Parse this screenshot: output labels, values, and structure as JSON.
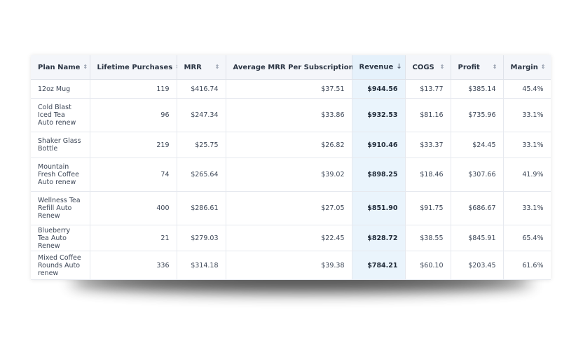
{
  "table": {
    "columns": [
      {
        "label": "Plan Name",
        "sort_icon": "sort-both-icon"
      },
      {
        "label": "Lifetime Purchases",
        "sort_icon": "sort-both-icon"
      },
      {
        "label": "MRR",
        "sort_icon": "sort-both-icon"
      },
      {
        "label": "Average MRR Per Subscription",
        "sort_icon": "sort-both-icon"
      },
      {
        "label": "Revenue",
        "sort_icon": "sort-desc-icon"
      },
      {
        "label": "COGS",
        "sort_icon": "sort-both-icon"
      },
      {
        "label": "Profit",
        "sort_icon": "sort-both-icon"
      },
      {
        "label": "Margin",
        "sort_icon": "sort-both-icon"
      }
    ],
    "sorted_column": "Revenue",
    "sort_direction": "descending",
    "rows": [
      {
        "plan": "12oz Mug",
        "purchases": "119",
        "mrr": "$416.74",
        "avg_mrr": "$37.51",
        "revenue": "$944.56",
        "cogs": "$13.77",
        "profit": "$385.14",
        "margin": "45.4%"
      },
      {
        "plan": "Cold Blast Iced Tea Auto renew",
        "purchases": "96",
        "mrr": "$247.34",
        "avg_mrr": "$33.86",
        "revenue": "$932.53",
        "cogs": "$81.16",
        "profit": "$735.96",
        "margin": "33.1%"
      },
      {
        "plan": "Shaker Glass Bottle",
        "purchases": "219",
        "mrr": "$25.75",
        "avg_mrr": "$26.82",
        "revenue": "$910.46",
        "cogs": "$33.37",
        "profit": "$24.45",
        "margin": "33.1%"
      },
      {
        "plan": "Mountain Fresh Coffee Auto renew",
        "purchases": "74",
        "mrr": "$265.64",
        "avg_mrr": "$39.02",
        "revenue": "$898.25",
        "cogs": "$18.46",
        "profit": "$307.66",
        "margin": "41.9%"
      },
      {
        "plan": "Wellness Tea Refill Auto Renew",
        "purchases": "400",
        "mrr": "$286.61",
        "avg_mrr": "$27.05",
        "revenue": "$851.90",
        "cogs": "$91.75",
        "profit": "$686.67",
        "margin": "33.1%"
      },
      {
        "plan": "Blueberry Tea Auto Renew",
        "purchases": "21",
        "mrr": "$279.03",
        "avg_mrr": "$22.45",
        "revenue": "$828.72",
        "cogs": "$38.55",
        "profit": "$845.91",
        "margin": "65.4%"
      },
      {
        "plan": "Mixed Coffee Rounds Auto renew",
        "purchases": "336",
        "mrr": "$314.18",
        "avg_mrr": "$39.38",
        "revenue": "$784.21",
        "cogs": "$60.10",
        "profit": "$203.45",
        "margin": "61.6%"
      }
    ]
  }
}
